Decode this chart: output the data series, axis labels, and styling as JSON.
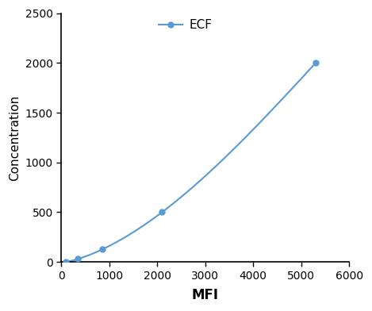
{
  "x": [
    100,
    350,
    850,
    2100,
    5300
  ],
  "y": [
    0,
    30,
    125,
    500,
    2000
  ],
  "line_color": "#5B9BD5",
  "marker_color": "#5B9BD5",
  "marker_style": "o",
  "marker_size": 5,
  "line_width": 1.5,
  "xlabel": "MFI",
  "ylabel": "Concentration",
  "xlabel_fontsize": 12,
  "ylabel_fontsize": 11,
  "legend_label": "ECF",
  "xlim": [
    0,
    6000
  ],
  "ylim": [
    0,
    2500
  ],
  "xticks": [
    0,
    1000,
    2000,
    3000,
    4000,
    5000,
    6000
  ],
  "yticks": [
    0,
    500,
    1000,
    1500,
    2000,
    2500
  ],
  "tick_fontsize": 10,
  "background_color": "#ffffff",
  "spine_color": "#000000"
}
